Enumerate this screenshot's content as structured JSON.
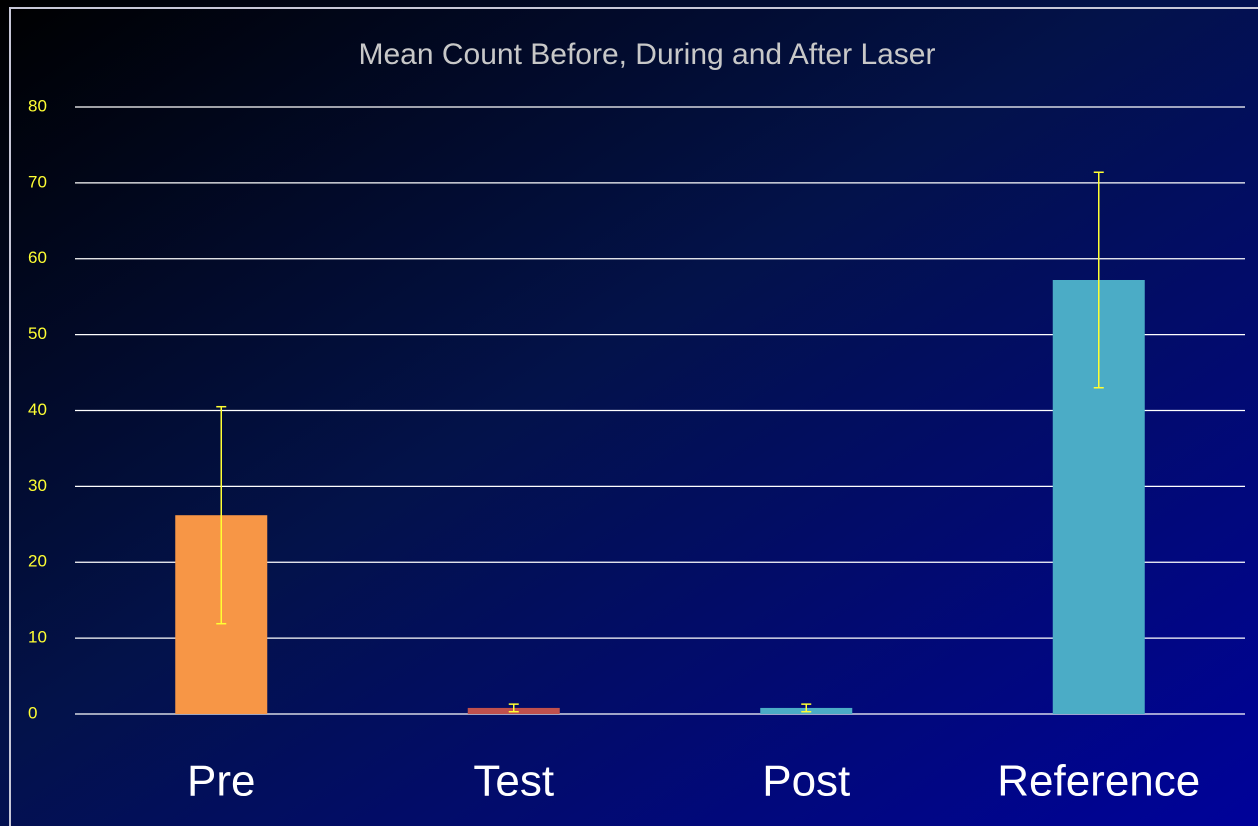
{
  "chart_data": {
    "type": "bar",
    "title": "Mean Count Before, During and After Laser",
    "categories": [
      "Pre",
      "Test",
      "Post",
      "Reference"
    ],
    "values": [
      26.2,
      0.8,
      0.8,
      57.2
    ],
    "errors": [
      14.3,
      0.5,
      0.5,
      14.2
    ],
    "colors": [
      "#f79646",
      "#c0504d",
      "#4bacc6",
      "#4bacc6"
    ],
    "error_color": "#ffff33",
    "ylim": [
      0,
      80
    ],
    "yticks": [
      0,
      10,
      20,
      30,
      40,
      50,
      60,
      70,
      80
    ],
    "grid": true
  }
}
